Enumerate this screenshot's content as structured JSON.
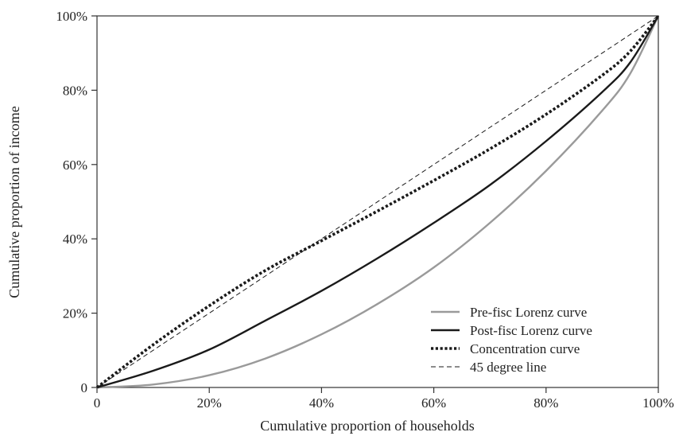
{
  "chart_data": {
    "type": "line",
    "xlabel": "Cumulative proportion of households",
    "ylabel": "Cumulative proportion of income",
    "xlim": [
      0,
      100
    ],
    "ylim": [
      0,
      100
    ],
    "x_ticks": [
      0,
      20,
      40,
      60,
      80,
      100
    ],
    "y_ticks": [
      0,
      20,
      40,
      60,
      80,
      100
    ],
    "x_tick_labels": [
      "0",
      "20%",
      "40%",
      "60%",
      "80%",
      "100%"
    ],
    "y_tick_labels": [
      "0",
      "20%",
      "40%",
      "60%",
      "80%",
      "100%"
    ],
    "grid": false,
    "legend_position": "bottom-right",
    "series": [
      {
        "name": "Pre-fisc Lorenz curve",
        "color": "#9a9a9a",
        "style": "solid",
        "x": [
          0,
          10,
          20,
          30,
          40,
          50,
          60,
          70,
          80,
          90,
          95,
          100
        ],
        "y": [
          0,
          0.8,
          3.3,
          7.8,
          14.3,
          22.5,
          32.3,
          44.3,
          58.3,
          74.5,
          84.5,
          100
        ]
      },
      {
        "name": "Post-fisc Lorenz curve",
        "color": "#1a1a1a",
        "style": "solid",
        "x": [
          0,
          10,
          20,
          30,
          40,
          50,
          60,
          70,
          80,
          90,
          95,
          100
        ],
        "y": [
          0,
          4.5,
          10.2,
          18.0,
          26.0,
          34.8,
          44.3,
          54.5,
          66.3,
          79.5,
          87.5,
          100
        ]
      },
      {
        "name": "Concentration curve",
        "color": "#1a1a1a",
        "style": "dotted",
        "x": [
          0,
          10,
          20,
          30,
          40,
          50,
          60,
          70,
          80,
          90,
          95,
          100
        ],
        "y": [
          0,
          11.5,
          22.0,
          31.5,
          39.5,
          47.5,
          55.7,
          64.2,
          73.5,
          84.0,
          90.5,
          100
        ]
      },
      {
        "name": "45 degree line",
        "color": "#1a1a1a",
        "style": "dashed",
        "x": [
          0,
          100
        ],
        "y": [
          0,
          100
        ]
      }
    ]
  }
}
